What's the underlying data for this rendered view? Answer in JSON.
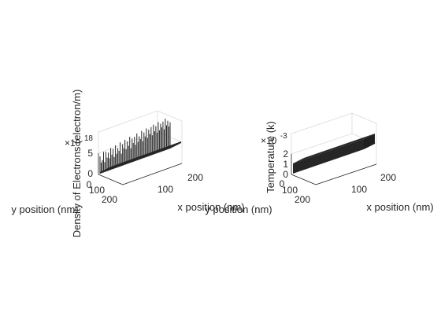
{
  "figure": {
    "background": "#ffffff"
  },
  "chart_data": [
    {
      "type": "bar3d",
      "zlabel": "Density of Electrons (electron/m)",
      "xlabel": "x position (nm)",
      "ylabel": "y position (nm)",
      "z_exponent_base": "×10",
      "z_exponent_power": "18",
      "z_ticks": [
        "0",
        "5"
      ],
      "x_ticks": [
        "100",
        "200"
      ],
      "y_ticks": [
        "0",
        "100",
        "200"
      ],
      "zlim": [
        0,
        10
      ],
      "z_heights": [
        4.2,
        2.6,
        3.1,
        5.0,
        2.4,
        4.8,
        3.3,
        4.4,
        2.9,
        5.3,
        3.6,
        4.9,
        2.8,
        5.6,
        3.4,
        4.7,
        3.9,
        5.9,
        3.0,
        5.2,
        4.1,
        6.1,
        3.7,
        5.5,
        4.3,
        6.4,
        3.5,
        5.8,
        4.6,
        6.0,
        3.9,
        6.6,
        4.4,
        5.7,
        4.9,
        6.8,
        4.2,
        6.2,
        5.1,
        7.0,
        4.6,
        6.5,
        5.3,
        6.9,
        4.8,
        7.3,
        5.6,
        6.7,
        5.0,
        7.5,
        5.4,
        6.9,
        5.9,
        7.2,
        5.2,
        7.7,
        6.0,
        7.0,
        5.5,
        6.4
      ],
      "bar_color": "#262626"
    },
    {
      "type": "bar3d",
      "zlabel": "Temperature (k)",
      "xlabel": "x position (nm)",
      "ylabel": "y position (nm)",
      "z_exponent_base": "×10",
      "z_exponent_power": "-3",
      "z_ticks": [
        "0",
        "1",
        "2"
      ],
      "x_ticks": [
        "100",
        "200"
      ],
      "y_ticks": [
        "0",
        "100",
        "200"
      ],
      "zlim": [
        0,
        2
      ],
      "z_value": 1,
      "bar_color": "#262626"
    }
  ]
}
